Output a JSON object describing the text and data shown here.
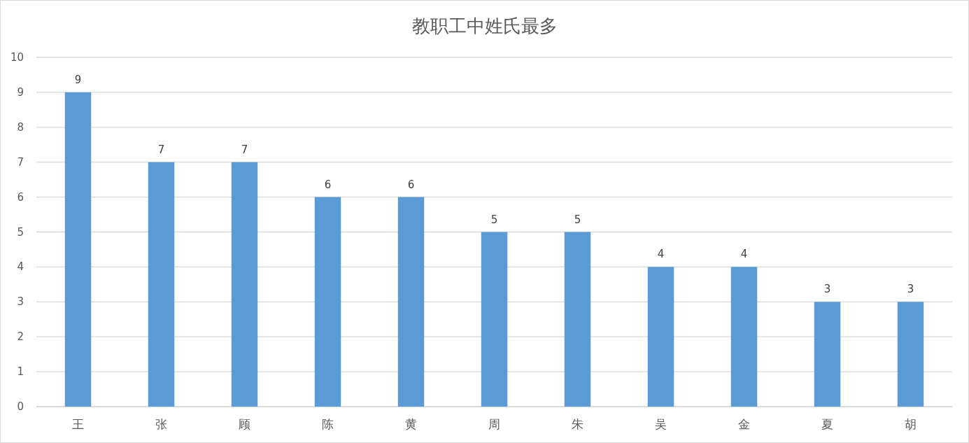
{
  "chart_data": {
    "type": "bar",
    "title": "教职工中姓氏最多",
    "categories": [
      "王",
      "张",
      "顾",
      "陈",
      "黄",
      "周",
      "朱",
      "吴",
      "金",
      "夏",
      "胡"
    ],
    "values": [
      9,
      7,
      7,
      6,
      6,
      5,
      5,
      4,
      4,
      3,
      3
    ],
    "color": "#5b9bd5",
    "ylim": [
      0,
      10
    ],
    "yticks": [
      0,
      1,
      2,
      3,
      4,
      5,
      6,
      7,
      8,
      9,
      10
    ],
    "grid": "y",
    "data_labels": true
  }
}
